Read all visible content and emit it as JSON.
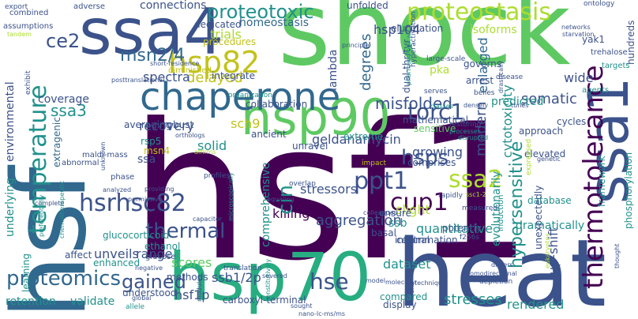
{
  "palette": {
    "dark_purple": "#440154",
    "indigo": "#3b528b",
    "blue": "#31688e",
    "teal": "#21918c",
    "sea_green": "#27ad81",
    "green": "#5ec962",
    "lime": "#addc30",
    "yellow": "#c2c21b",
    "violet": "#482878"
  },
  "words": [
    {
      "text": "hsf1",
      "color": "dark_purple"
    },
    {
      "text": "hsf",
      "color": "blue"
    },
    {
      "text": "shock",
      "color": "green"
    },
    {
      "text": "heat",
      "color": "indigo"
    },
    {
      "text": "hsp70",
      "color": "sea_green"
    },
    {
      "text": "ssa4",
      "color": "indigo"
    },
    {
      "text": "hsp90",
      "color": "green"
    },
    {
      "text": "ssa1",
      "color": "indigo"
    },
    {
      "text": "chaperone",
      "color": "blue"
    },
    {
      "text": "hsp82",
      "color": "yellow"
    },
    {
      "text": "proteostasis",
      "color": "lime"
    },
    {
      "text": "proteotoxic",
      "color": "teal"
    },
    {
      "text": "temperature",
      "color": "teal"
    },
    {
      "text": "thermotolerance",
      "color": "dark_purple"
    },
    {
      "text": "hsrhsc82",
      "color": "indigo"
    },
    {
      "text": "hsp104",
      "color": "indigo"
    },
    {
      "text": "ssa2",
      "color": "lime"
    },
    {
      "text": "ppt1",
      "color": "indigo"
    },
    {
      "text": "cup1",
      "color": "dark_purple"
    },
    {
      "text": "torc1",
      "color": "indigo"
    },
    {
      "text": "msn2/4",
      "color": "blue"
    },
    {
      "text": "ce2",
      "color": "indigo"
    },
    {
      "text": "ssa3",
      "color": "teal"
    },
    {
      "text": "thermal",
      "color": "indigo"
    },
    {
      "text": "hsps",
      "color": "indigo"
    },
    {
      "text": "proteomics",
      "color": "blue"
    },
    {
      "text": "hse",
      "color": "indigo"
    },
    {
      "text": "gained",
      "color": "indigo"
    },
    {
      "text": "hypersensitive",
      "color": "teal"
    },
    {
      "text": "misfolded",
      "color": "indigo"
    },
    {
      "text": "connections",
      "color": "indigo"
    },
    {
      "text": "homeostasis",
      "color": "blue"
    },
    {
      "text": "dedicated",
      "color": "indigo"
    },
    {
      "text": "trials",
      "color": "lime"
    },
    {
      "text": "delayed",
      "color": "yellow"
    },
    {
      "text": "spectra",
      "color": "indigo"
    },
    {
      "text": "lambda",
      "color": "indigo"
    },
    {
      "text": "degrees",
      "color": "blue"
    },
    {
      "text": "enlarged",
      "color": "blue"
    },
    {
      "text": "modern",
      "color": "indigo"
    },
    {
      "text": "somatic",
      "color": "indigo"
    },
    {
      "text": "wide",
      "color": "indigo"
    },
    {
      "text": "cytotoxicity",
      "color": "teal"
    },
    {
      "text": "up-shift",
      "color": "indigo"
    },
    {
      "text": "evolutionarily",
      "color": "teal"
    },
    {
      "text": "quantitative",
      "color": "teal"
    },
    {
      "text": "aggregation",
      "color": "indigo"
    },
    {
      "text": "growing",
      "color": "indigo"
    },
    {
      "text": "stressors",
      "color": "indigo"
    },
    {
      "text": "geldanamycin",
      "color": "indigo"
    },
    {
      "text": "killing",
      "color": "dark_purple"
    },
    {
      "text": "scores",
      "color": "green"
    },
    {
      "text": "dataset",
      "color": "teal"
    },
    {
      "text": "ssb1/2p",
      "color": "indigo"
    },
    {
      "text": "stresses",
      "color": "teal"
    },
    {
      "text": "rendered",
      "color": "teal"
    },
    {
      "text": "hsf1p",
      "color": "indigo"
    },
    {
      "text": "recovery",
      "color": "indigo"
    },
    {
      "text": "environmental",
      "color": "indigo"
    },
    {
      "text": "underlying",
      "color": "teal"
    },
    {
      "text": "coverage",
      "color": "indigo"
    },
    {
      "text": "extragenic",
      "color": "blue"
    },
    {
      "text": "unveils",
      "color": "indigo"
    },
    {
      "text": "range",
      "color": "indigo"
    },
    {
      "text": "retention",
      "color": "teal"
    },
    {
      "text": "validate",
      "color": "teal"
    },
    {
      "text": "carboxyl-terminal",
      "color": "indigo"
    },
    {
      "text": "comprehensive",
      "color": "teal"
    },
    {
      "text": "cin",
      "color": "teal"
    },
    {
      "text": "solid",
      "color": "teal"
    },
    {
      "text": "sch9",
      "color": "yellow"
    },
    {
      "text": "msn4",
      "color": "yellow"
    },
    {
      "text": "rsp5",
      "color": "teal"
    },
    {
      "text": "ssa",
      "color": "indigo"
    },
    {
      "text": "enhanced",
      "color": "teal"
    },
    {
      "text": "methods",
      "color": "indigo"
    },
    {
      "text": "ethanol",
      "color": "teal"
    },
    {
      "text": "glucocorticoid",
      "color": "teal"
    },
    {
      "text": "inflammation",
      "color": "indigo"
    },
    {
      "text": "slight",
      "color": "lime"
    },
    {
      "text": "ssb",
      "color": "teal"
    },
    {
      "text": "mathematical",
      "color": "indigo"
    },
    {
      "text": "collaboration",
      "color": "indigo"
    },
    {
      "text": "predicted",
      "color": "teal"
    },
    {
      "text": "extreme",
      "color": "teal"
    },
    {
      "text": "pka",
      "color": "lime"
    },
    {
      "text": "framework",
      "color": "teal"
    },
    {
      "text": "dramatically",
      "color": "teal"
    },
    {
      "text": "approach",
      "color": "indigo"
    },
    {
      "text": "cycles",
      "color": "indigo"
    },
    {
      "text": "elevated",
      "color": "indigo"
    },
    {
      "text": "database",
      "color": "teal"
    },
    {
      "text": "phosphorylation",
      "color": "teal"
    },
    {
      "text": "unexpectedly",
      "color": "indigo"
    },
    {
      "text": "averaging",
      "color": "indigo"
    },
    {
      "text": "robust",
      "color": "indigo"
    },
    {
      "text": "ancient",
      "color": "indigo"
    },
    {
      "text": "unravel",
      "color": "indigo"
    },
    {
      "text": "integrate",
      "color": "indigo"
    },
    {
      "text": "procedures",
      "color": "yellow"
    },
    {
      "text": "diminished",
      "color": "yellow"
    },
    {
      "text": "elucidation",
      "color": "indigo"
    },
    {
      "text": "isoforms",
      "color": "lime"
    },
    {
      "text": "unfolded",
      "color": "indigo"
    },
    {
      "text": "governs",
      "color": "indigo"
    },
    {
      "text": "arrest",
      "color": "indigo"
    },
    {
      "text": "dual-thr/tyr",
      "color": "indigo"
    },
    {
      "text": "comprises",
      "color": "indigo"
    },
    {
      "text": "sensitive",
      "color": "green"
    },
    {
      "text": "ensure",
      "color": "indigo"
    },
    {
      "text": "central",
      "color": "indigo"
    },
    {
      "text": "potently",
      "color": "indigo"
    },
    {
      "text": "basal",
      "color": "indigo"
    },
    {
      "text": "compared",
      "color": "teal"
    },
    {
      "text": "display",
      "color": "indigo"
    },
    {
      "text": "understood",
      "color": "indigo"
    },
    {
      "text": "affect",
      "color": "indigo"
    },
    {
      "text": "learning",
      "color": "teal"
    },
    {
      "text": "combined",
      "color": "indigo"
    },
    {
      "text": "assumptions",
      "color": "indigo"
    },
    {
      "text": "adverse",
      "color": "indigo"
    },
    {
      "text": "hundreds",
      "color": "indigo"
    },
    {
      "text": "trehalose",
      "color": "indigo"
    },
    {
      "text": "yak1",
      "color": "indigo"
    },
    {
      "text": "starvation",
      "color": "indigo"
    },
    {
      "text": "networks",
      "color": "indigo"
    },
    {
      "text": "principle",
      "color": "indigo"
    },
    {
      "text": "short-residence",
      "color": "indigo"
    },
    {
      "text": "posttranslational",
      "color": "indigo"
    },
    {
      "text": "maldi-mass",
      "color": "indigo"
    },
    {
      "text": "abnormal",
      "color": "indigo"
    },
    {
      "text": "exhibit",
      "color": "indigo"
    },
    {
      "text": "glucose",
      "color": "indigo"
    },
    {
      "text": "induction",
      "color": "teal"
    },
    {
      "text": "organization",
      "color": "teal"
    },
    {
      "text": "large-scale",
      "color": "indigo"
    },
    {
      "text": "hyperactivation",
      "color": "indigo"
    },
    {
      "text": "pharmacological",
      "color": "teal"
    },
    {
      "text": "serves",
      "color": "indigo"
    },
    {
      "text": "belies",
      "color": "indigo"
    },
    {
      "text": "agents",
      "color": "teal"
    },
    {
      "text": "targets",
      "color": "teal"
    },
    {
      "text": "ontology",
      "color": "indigo"
    },
    {
      "text": "export",
      "color": "indigo"
    },
    {
      "text": "tandem",
      "color": "lime"
    },
    {
      "text": "tunes",
      "color": "indigo"
    },
    {
      "text": "disease",
      "color": "indigo"
    },
    {
      "text": "classes",
      "color": "teal"
    },
    {
      "text": "densely",
      "color": "indigo"
    },
    {
      "text": "drastically",
      "color": "indigo"
    },
    {
      "text": "restoring",
      "color": "indigo"
    },
    {
      "text": "processes",
      "color": "teal"
    },
    {
      "text": "disrupted",
      "color": "teal"
    },
    {
      "text": "rapidly",
      "color": "indigo"
    },
    {
      "text": "measured",
      "color": "indigo"
    },
    {
      "text": "colleagues",
      "color": "indigo"
    },
    {
      "text": "profiles",
      "color": "indigo"
    },
    {
      "text": "equaling",
      "color": "indigo"
    },
    {
      "text": "overlap",
      "color": "indigo"
    },
    {
      "text": "impact",
      "color": "yellow"
    },
    {
      "text": "affirms",
      "color": "lime"
    },
    {
      "text": "ssc1-2",
      "color": "lime"
    },
    {
      "text": "f256s",
      "color": "indigo"
    },
    {
      "text": "phase",
      "color": "indigo"
    },
    {
      "text": "providing",
      "color": "indigo"
    },
    {
      "text": "permissive",
      "color": "indigo"
    },
    {
      "text": "analyzed",
      "color": "indigo"
    },
    {
      "text": "unknown",
      "color": "indigo"
    },
    {
      "text": "complete",
      "color": "indigo"
    },
    {
      "text": "preferentially",
      "color": "teal"
    },
    {
      "text": "chemotherapeutic",
      "color": "teal"
    },
    {
      "text": "capacitor",
      "color": "indigo"
    },
    {
      "text": "microscopically",
      "color": "teal"
    },
    {
      "text": "negative",
      "color": "indigo"
    },
    {
      "text": "translation",
      "color": "indigo"
    },
    {
      "text": "global",
      "color": "indigo"
    },
    {
      "text": "allele",
      "color": "teal"
    },
    {
      "text": "modules",
      "color": "indigo"
    },
    {
      "text": "severed",
      "color": "indigo"
    },
    {
      "text": "constitutively",
      "color": "teal"
    },
    {
      "text": "sought",
      "color": "indigo"
    },
    {
      "text": "nano-lc-ms/ms",
      "color": "indigo"
    },
    {
      "text": "model",
      "color": "indigo"
    },
    {
      "text": "ck2",
      "color": "indigo"
    },
    {
      "text": "molecular",
      "color": "indigo"
    },
    {
      "text": "technique",
      "color": "indigo"
    },
    {
      "text": "depletion",
      "color": "indigo"
    },
    {
      "text": "homodirectional",
      "color": "indigo"
    },
    {
      "text": "drivers",
      "color": "indigo"
    },
    {
      "text": "eukaryotes",
      "color": "lime"
    },
    {
      "text": "orthologs",
      "color": "indigo"
    },
    {
      "text": "thought",
      "color": "indigo"
    },
    {
      "text": "expressed",
      "color": "lime"
    },
    {
      "text": "genetic",
      "color": "indigo"
    }
  ]
}
